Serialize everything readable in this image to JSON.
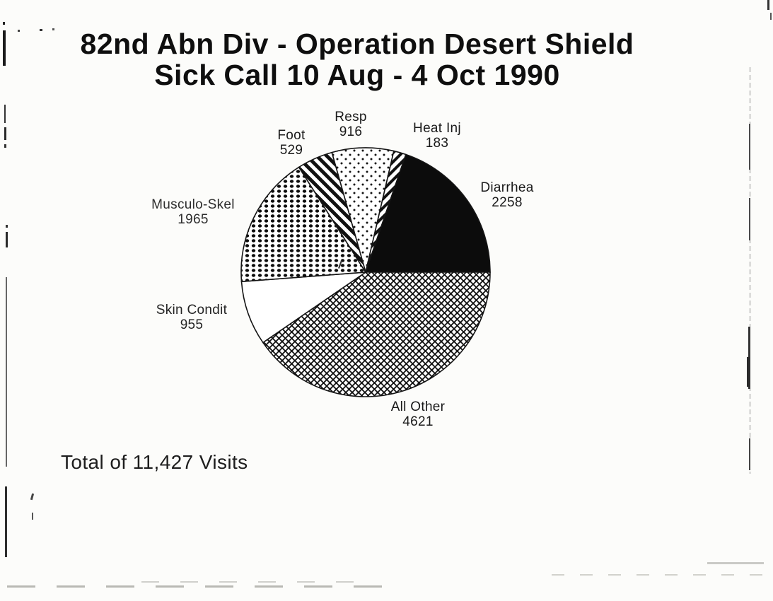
{
  "chart_data": {
    "type": "pie",
    "title_lines": [
      "82nd Abn Div - Operation Desert Shield",
      "Sick Call 10 Aug - 4 Oct 1990"
    ],
    "footnote": "Total of 11,427 Visits",
    "total_visits": 11427,
    "start_angle_deg": -15.76,
    "direction": "clockwise",
    "legend": "none",
    "labels_show_values": true,
    "ink_color": "#141414",
    "paper_color": "#fcfcfa",
    "slices": [
      {
        "label": "Resp",
        "value": 916,
        "pattern": "small-dots"
      },
      {
        "label": "Heat Inj",
        "value": 183,
        "pattern": "diagonal-hatch-up"
      },
      {
        "label": "Diarrhea",
        "value": 2258,
        "pattern": "solid-black"
      },
      {
        "label": "All Other",
        "value": 4621,
        "pattern": "crosshatch"
      },
      {
        "label": "Skin Condit",
        "value": 955,
        "pattern": "plain-white"
      },
      {
        "label": "Musculo-Skel",
        "value": 1965,
        "pattern": "large-dots"
      },
      {
        "label": "Foot",
        "value": 529,
        "pattern": "diagonal-hatch-down"
      }
    ]
  }
}
